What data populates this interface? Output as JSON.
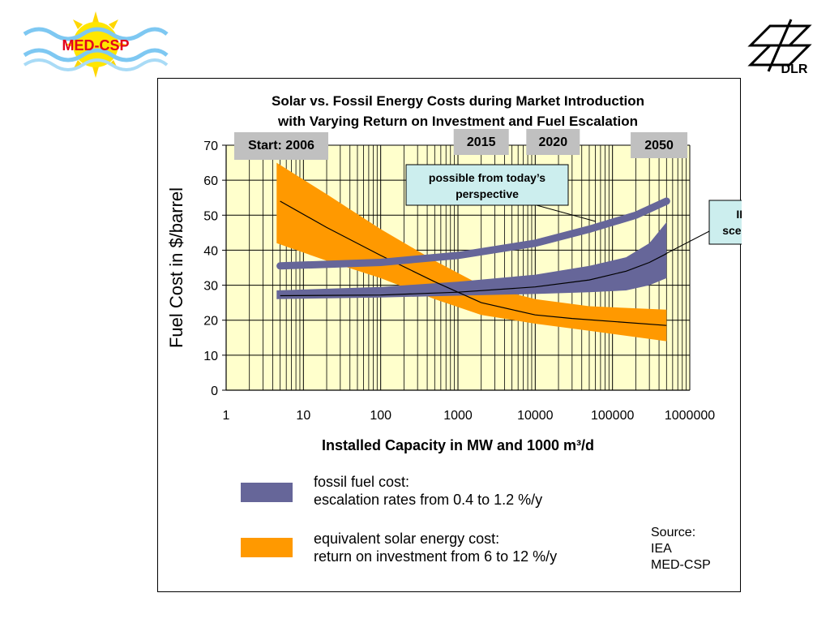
{
  "logos": {
    "left": {
      "text": "MED-CSP",
      "icon": "sun-wave-logo-icon"
    },
    "right": {
      "text": "DLR",
      "icon": "dlr-logo-icon"
    }
  },
  "chart_data": {
    "type": "area",
    "title": [
      "Solar vs. Fossil Energy Costs during Market Introduction",
      "with Varying Return on Investment and Fuel Escalation"
    ],
    "xlabel": "Installed Capacity in MW and 1000 m³/d",
    "ylabel": "Fuel Cost in $/barrel",
    "x_scale": "log",
    "xlim": [
      1,
      1000000
    ],
    "ylim": [
      0,
      70
    ],
    "x_ticks": [
      "1",
      "10",
      "100",
      "1000",
      "10000",
      "100000",
      "1000000"
    ],
    "y_ticks": [
      "0",
      "10",
      "20",
      "30",
      "40",
      "50",
      "60",
      "70"
    ],
    "grid": true,
    "plot_background": "#FFFFCC",
    "series": [
      {
        "name": "equivalent solar energy cost",
        "kind": "band",
        "color": "#FF9900",
        "x": [
          4.5,
          20,
          100,
          500,
          2000,
          10000,
          50000,
          500000
        ],
        "y_upper": [
          65,
          56,
          46,
          37,
          30,
          26,
          24,
          23
        ],
        "y_lower": [
          42,
          37,
          32,
          26,
          21.5,
          19,
          17,
          14
        ]
      },
      {
        "kind": "line",
        "color": "#000000",
        "x": [
          5,
          20,
          100,
          500,
          2000,
          10000,
          30000,
          500000
        ],
        "y": [
          54,
          46.5,
          38.5,
          31,
          25,
          21.5,
          20.5,
          18.5
        ]
      },
      {
        "name": "fossil fuel cost",
        "kind": "band",
        "color": "#666699",
        "x": [
          4.5,
          100,
          1000,
          10000,
          50000,
          150000,
          300000,
          500000
        ],
        "y_upper": [
          28.5,
          29.5,
          31,
          33,
          35.5,
          38,
          42,
          48
        ],
        "y_lower": [
          26,
          26.5,
          27,
          27.5,
          28,
          28.5,
          30,
          32
        ]
      },
      {
        "kind": "line",
        "color": "#000000",
        "x": [
          5,
          100,
          1000,
          10000,
          50000,
          150000,
          300000,
          500000
        ],
        "y": [
          27,
          27.2,
          28,
          29.5,
          31.5,
          34,
          36.5,
          39
        ]
      },
      {
        "name": "possible from today's perspective",
        "kind": "thick-line",
        "color": "#666699",
        "x": [
          5,
          100,
          1000,
          10000,
          50000,
          200000,
          500000
        ],
        "y": [
          35.5,
          36.5,
          38.5,
          42,
          46,
          50,
          54
        ]
      }
    ],
    "year_markers": [
      {
        "label": "Start: 2006",
        "x": 10
      },
      {
        "label": "2015",
        "x": 2000
      },
      {
        "label": "2020",
        "x": 17000
      },
      {
        "label": "2050",
        "x": 400000
      }
    ],
    "callouts": [
      {
        "lines": [
          "possible from today’s",
          "perspective"
        ],
        "fill": "#CCEEEE"
      },
      {
        "lines": [
          "IEA",
          "scenario"
        ],
        "fill": "#CCEEEE"
      }
    ],
    "legend": [
      {
        "color": "#666699",
        "lines": [
          "fossil fuel cost:",
          "escalation rates from 0.4 to 1.2 %/y"
        ]
      },
      {
        "color": "#FF9900",
        "lines": [
          "equivalent solar energy cost:",
          "return on investment from 6 to 12 %/y"
        ]
      }
    ],
    "source": [
      "Source:",
      "IEA",
      "MED-CSP"
    ]
  }
}
